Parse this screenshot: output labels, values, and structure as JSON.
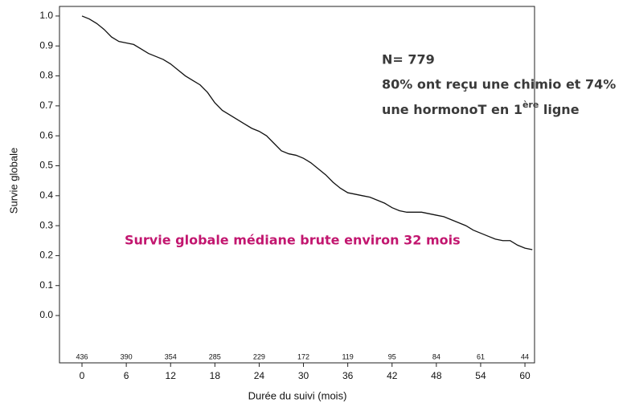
{
  "chart_data": {
    "type": "line",
    "x_label": "Durée du suivi (mois)",
    "y_label": "Survie globale",
    "series": [
      {
        "color": "#111111",
        "x": [
          0,
          1,
          2,
          3,
          4,
          5,
          6,
          7,
          8,
          9,
          10,
          11,
          12,
          13,
          14,
          15,
          16,
          17,
          18,
          19,
          20,
          21,
          22,
          23,
          24,
          25,
          26,
          27,
          28,
          29,
          30,
          31,
          32,
          33,
          34,
          35,
          36,
          37,
          38,
          39,
          40,
          41,
          42,
          43,
          44,
          45,
          46,
          47,
          48,
          49,
          50,
          51,
          52,
          53,
          54,
          55,
          56,
          57,
          58,
          59,
          60,
          61
        ],
        "values": [
          1.0,
          0.99,
          0.975,
          0.955,
          0.93,
          0.915,
          0.91,
          0.905,
          0.89,
          0.875,
          0.865,
          0.855,
          0.84,
          0.82,
          0.8,
          0.785,
          0.77,
          0.745,
          0.71,
          0.685,
          0.67,
          0.655,
          0.64,
          0.625,
          0.615,
          0.6,
          0.575,
          0.55,
          0.54,
          0.535,
          0.525,
          0.51,
          0.49,
          0.47,
          0.445,
          0.425,
          0.41,
          0.405,
          0.4,
          0.395,
          0.385,
          0.375,
          0.36,
          0.35,
          0.345,
          0.345,
          0.345,
          0.34,
          0.335,
          0.33,
          0.32,
          0.31,
          0.3,
          0.285,
          0.275,
          0.265,
          0.255,
          0.25,
          0.25,
          0.235,
          0.225,
          0.22
        ]
      }
    ],
    "xlim": [
      -3.05,
      61.3
    ],
    "ylim": [
      -0.158,
      1.032
    ],
    "xticks": [
      0,
      6,
      12,
      18,
      24,
      30,
      36,
      42,
      48,
      54,
      60
    ],
    "yticks": [
      {
        "value": 1.0,
        "label": "1.0"
      },
      0.9,
      0.8,
      0.7,
      0.6,
      0.5,
      0.4,
      0.3,
      0.2,
      0.1,
      {
        "value": 0.0,
        "label": "0.0"
      }
    ],
    "at_risk": [
      436,
      390,
      354,
      285,
      229,
      172,
      119,
      95,
      84,
      61,
      44
    ],
    "annotations": {
      "n": "N= 779",
      "line2": "80% ont reçu une chimio et 74%",
      "line3_start": "une hormonoT en 1",
      "line3_sup": "ère",
      "line3_end": " ligne",
      "median": "Survie globale médiane brute environ 32 mois"
    }
  }
}
